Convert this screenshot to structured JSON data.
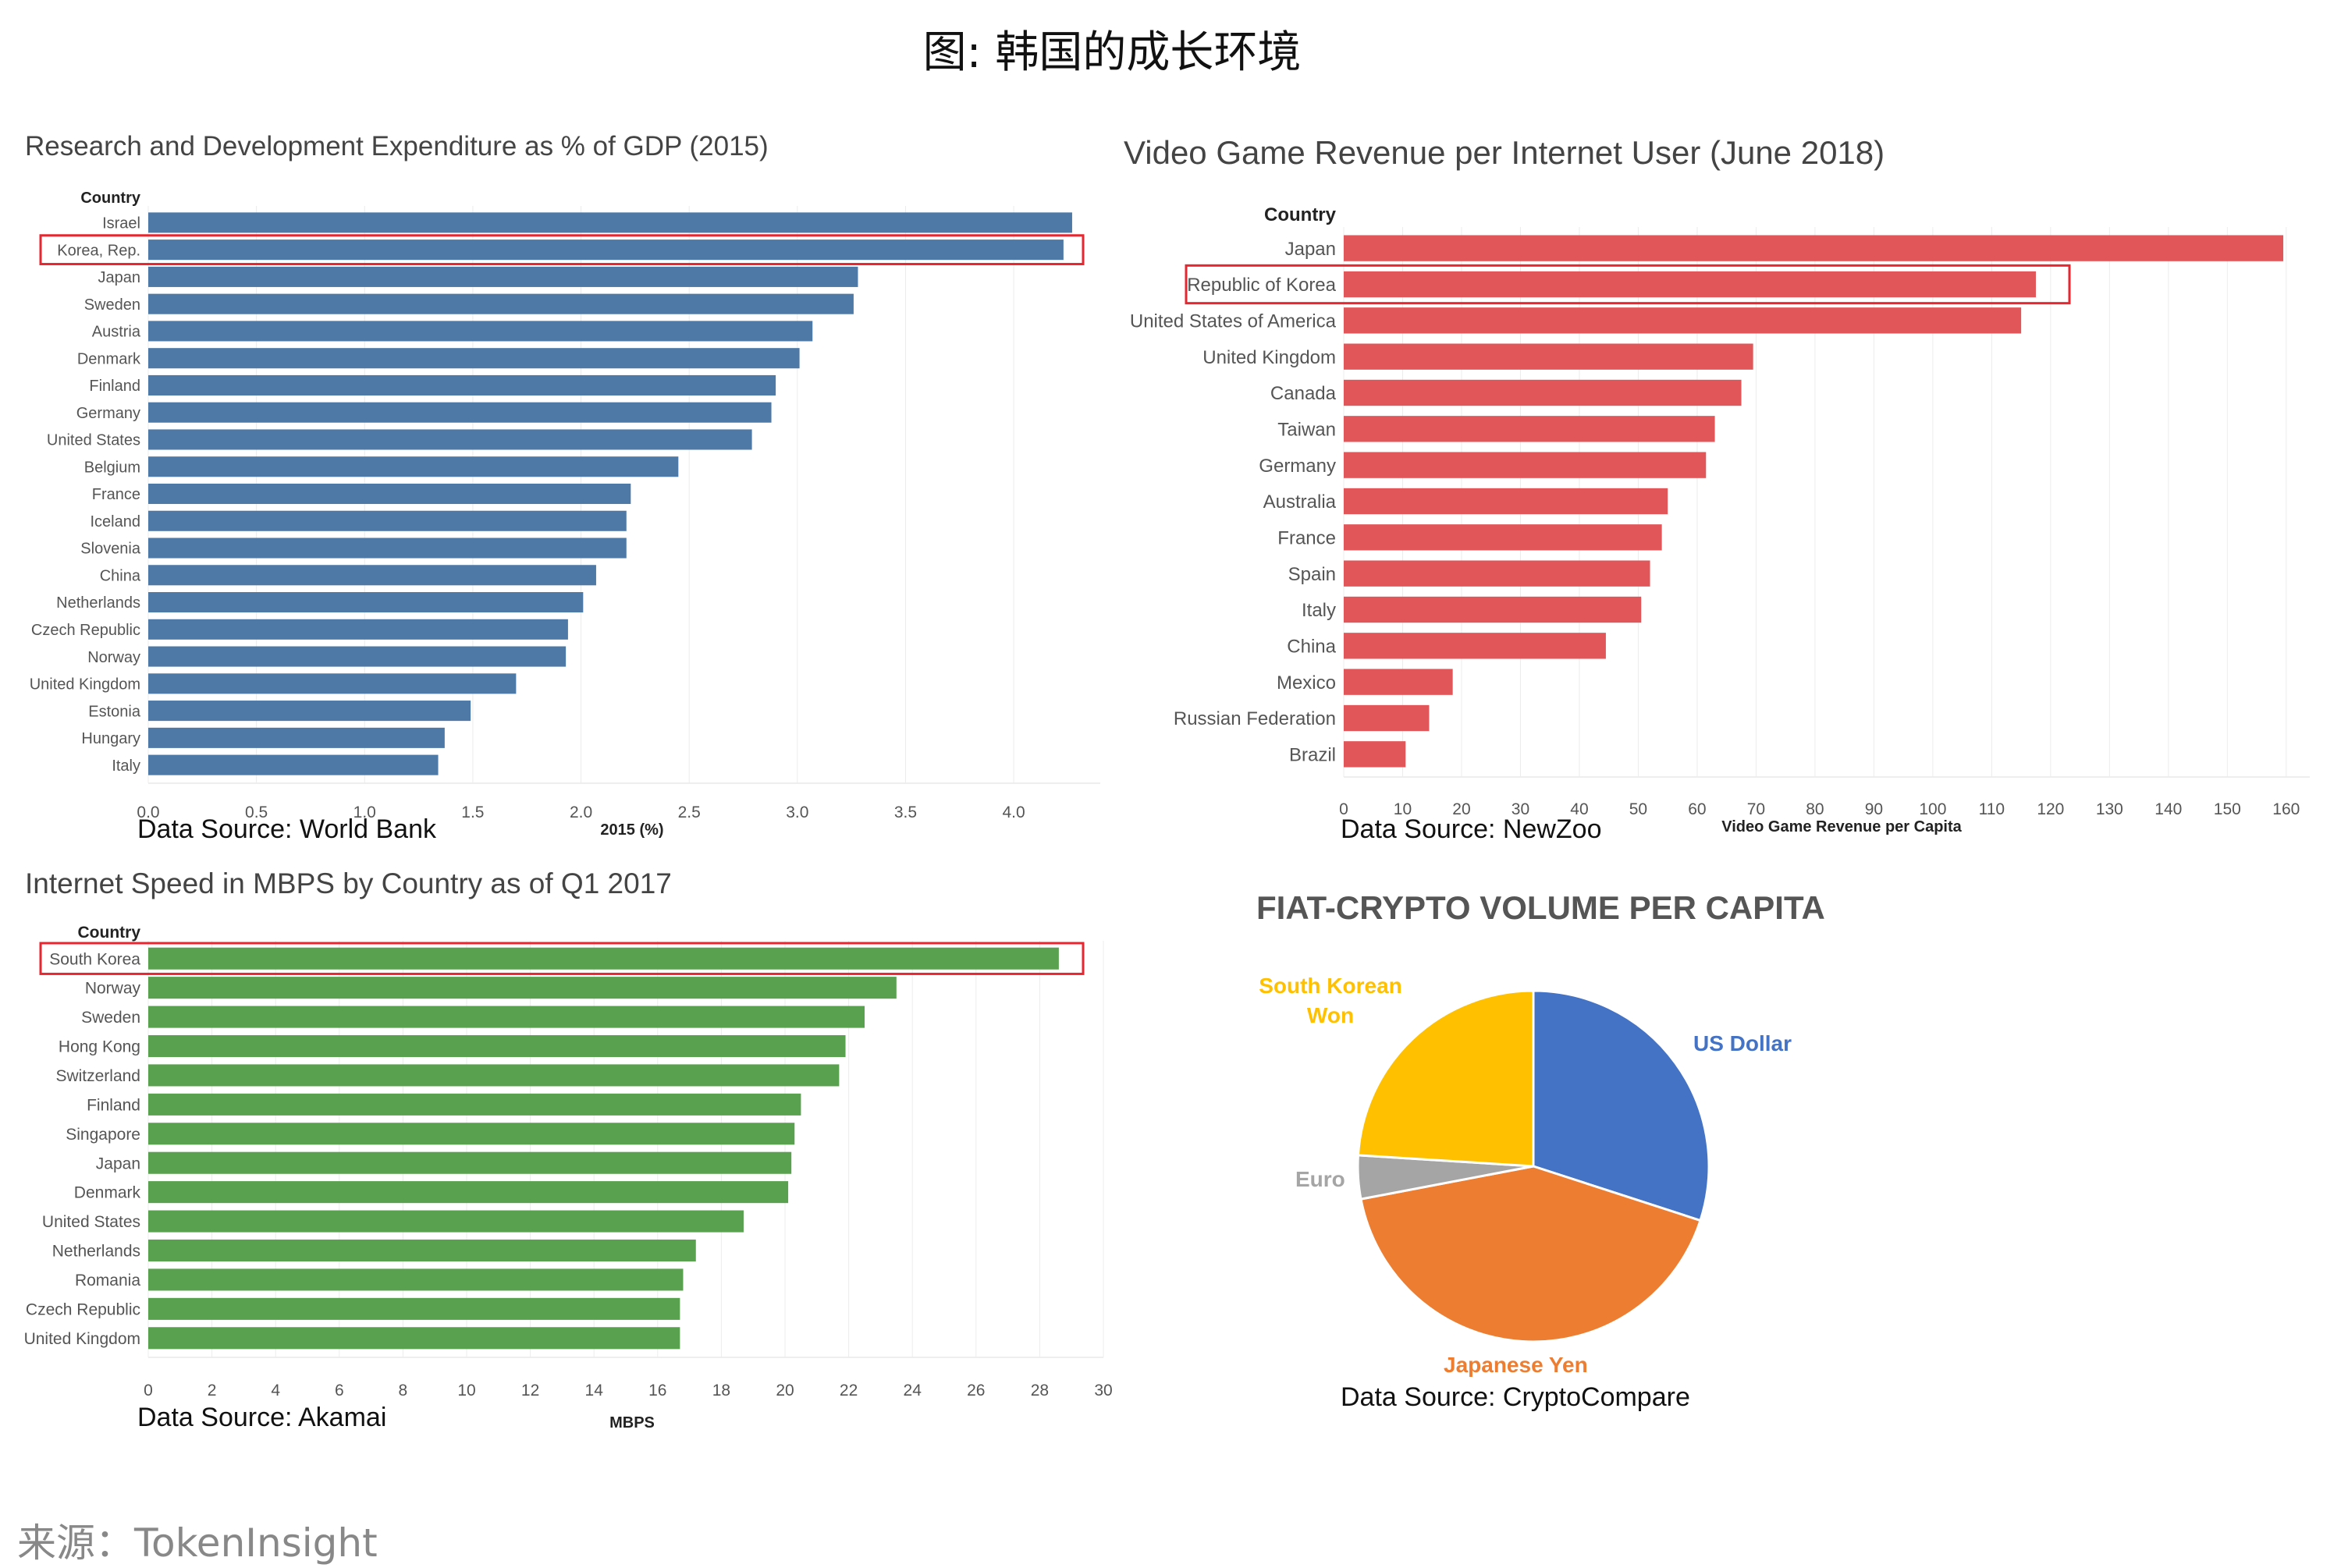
{
  "page_title": "图: 韩国的成长环境",
  "footer": "来源：TokenInsight",
  "colors": {
    "rd_bar": "#4e79a7",
    "game_bar": "#e15759",
    "speed_bar": "#59a14f",
    "highlight_box": "#e8262f"
  },
  "chart_data": [
    {
      "id": "rd",
      "type": "bar",
      "orientation": "horizontal",
      "title": "Research and Development Expenditure as % of GDP (2015)",
      "header": "Country",
      "xlabel": "2015 (%)",
      "source": "Data Source: World Bank",
      "categories": [
        "Israel",
        "Korea, Rep.",
        "Japan",
        "Sweden",
        "Austria",
        "Denmark",
        "Finland",
        "Germany",
        "United States",
        "Belgium",
        "France",
        "Iceland",
        "Slovenia",
        "China",
        "Netherlands",
        "Czech Republic",
        "Norway",
        "United Kingdom",
        "Estonia",
        "Hungary",
        "Italy"
      ],
      "values": [
        4.27,
        4.23,
        3.28,
        3.26,
        3.07,
        3.01,
        2.9,
        2.88,
        2.79,
        2.45,
        2.23,
        2.21,
        2.21,
        2.07,
        2.01,
        1.94,
        1.93,
        1.7,
        1.49,
        1.37,
        1.34
      ],
      "xlim": [
        0,
        4.4
      ],
      "ticks": [
        "0.0",
        "0.5",
        "1.0",
        "1.5",
        "2.0",
        "2.5",
        "3.0",
        "3.5",
        "4.0"
      ],
      "highlight": "Korea, Rep.",
      "grid": true
    },
    {
      "id": "game",
      "type": "bar",
      "orientation": "horizontal",
      "title": "Video Game Revenue per Internet User (June 2018)",
      "header": "Country",
      "xlabel": "Video Game Revenue per Capita",
      "source": "Data Source: NewZoo",
      "categories": [
        "Japan",
        "Republic of Korea",
        "United States of America",
        "United Kingdom",
        "Canada",
        "Taiwan",
        "Germany",
        "Australia",
        "France",
        "Spain",
        "Italy",
        "China",
        "Mexico",
        "Russian Federation",
        "Brazil"
      ],
      "values": [
        159.5,
        117.5,
        115,
        69.5,
        67.5,
        63,
        61.5,
        55,
        54,
        52,
        50.5,
        44.5,
        18.5,
        14.5,
        10.5
      ],
      "xlim": [
        0,
        164
      ],
      "ticks": [
        "0",
        "10",
        "20",
        "30",
        "40",
        "50",
        "60",
        "70",
        "80",
        "90",
        "100",
        "110",
        "120",
        "130",
        "140",
        "150",
        "160"
      ],
      "highlight": "Republic of Korea",
      "grid": true
    },
    {
      "id": "speed",
      "type": "bar",
      "orientation": "horizontal",
      "title": "Internet Speed in MBPS by Country as of Q1 2017",
      "header": "Country",
      "xlabel": "MBPS",
      "source": "Data Source: Akamai",
      "categories": [
        "South Korea",
        "Norway",
        "Sweden",
        "Hong Kong",
        "Switzerland",
        "Finland",
        "Singapore",
        "Japan",
        "Denmark",
        "United States",
        "Netherlands",
        "Romania",
        "Czech Republic",
        "United Kingdom"
      ],
      "values": [
        28.6,
        23.5,
        22.5,
        21.9,
        21.7,
        20.5,
        20.3,
        20.2,
        20.1,
        18.7,
        17.2,
        16.8,
        16.7,
        16.7
      ],
      "xlim": [
        0,
        30
      ],
      "ticks": [
        "0",
        "2",
        "4",
        "6",
        "8",
        "10",
        "12",
        "14",
        "16",
        "18",
        "20",
        "22",
        "24",
        "26",
        "28",
        "30"
      ],
      "highlight": "South Korea",
      "grid": true
    },
    {
      "id": "fiat",
      "type": "pie",
      "title": "FIAT-CRYPTO VOLUME PER CAPITA",
      "source": "Data Source: CryptoCompare",
      "slices": [
        {
          "label": "US Dollar",
          "value": 30,
          "color": "#4472c4"
        },
        {
          "label": "Japanese Yen",
          "value": 42,
          "color": "#ed7d31"
        },
        {
          "label": "Euro",
          "value": 4,
          "color": "#a5a5a5"
        },
        {
          "label": "South Korean Won",
          "value": 24,
          "color": "#ffc000"
        }
      ]
    }
  ]
}
